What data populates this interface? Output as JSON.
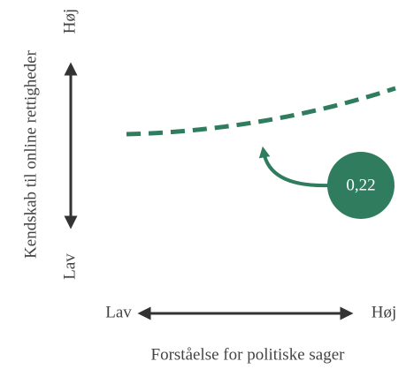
{
  "y_axis": {
    "label": "Kendskab til online rettigheder",
    "high": "Høj",
    "low": "Lav"
  },
  "x_axis": {
    "label": "Forståelse for politiske sager",
    "high": "Høj",
    "low": "Lav"
  },
  "annotation": "0,22"
}
